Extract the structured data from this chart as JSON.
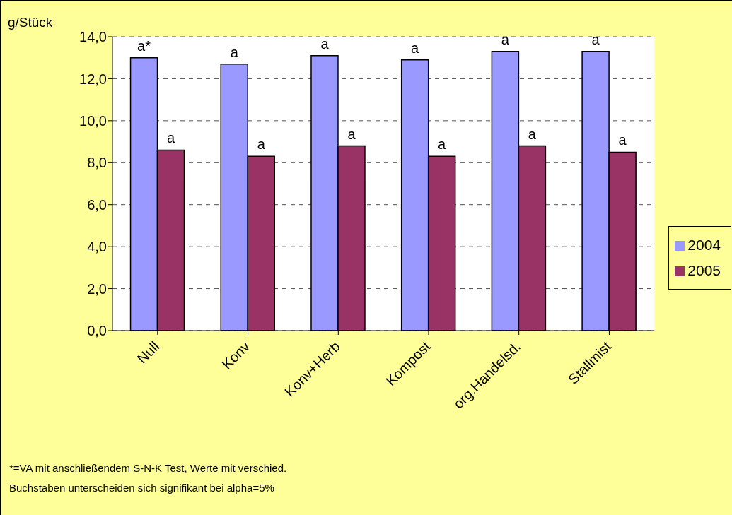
{
  "chart_data": {
    "type": "bar",
    "ylabel": "g/Stück",
    "categories": [
      "Null",
      "Konv",
      "Konv+Herb",
      "Kompost",
      "org.Handelsd.",
      "Stallmist"
    ],
    "series": [
      {
        "name": "2004",
        "color": "#9999ff",
        "values": [
          13.0,
          12.7,
          13.1,
          12.9,
          13.3,
          13.3
        ],
        "value_labels": [
          "a*",
          "a",
          "a",
          "a",
          "a",
          "a"
        ]
      },
      {
        "name": "2005",
        "color": "#993366",
        "values": [
          8.6,
          8.3,
          8.8,
          8.3,
          8.8,
          8.5
        ],
        "value_labels": [
          "a",
          "a",
          "a",
          "a",
          "a",
          "a"
        ]
      }
    ],
    "ylim": [
      0,
      14
    ],
    "yticks": [
      {
        "value": 0,
        "label": "0,0"
      },
      {
        "value": 2,
        "label": "2,0"
      },
      {
        "value": 4,
        "label": "4,0"
      },
      {
        "value": 6,
        "label": "6,0"
      },
      {
        "value": 8,
        "label": "8,0"
      },
      {
        "value": 10,
        "label": "10,0"
      },
      {
        "value": 12,
        "label": "12,0"
      },
      {
        "value": 14,
        "label": "14,0"
      }
    ],
    "grid": "y",
    "legend": "right",
    "annotations": [
      "*=VA mit anschließendem S-N-K Test, Werte mit verschied.",
      "Buchstaben unterscheiden sich signifikant bei alpha=5%"
    ]
  }
}
